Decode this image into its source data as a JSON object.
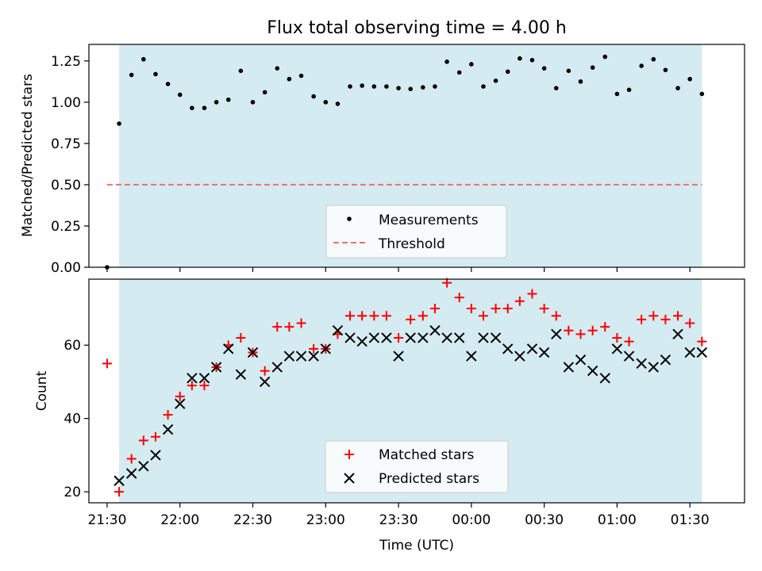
{
  "figure": {
    "title": "Flux total observing time = 4.00 h"
  },
  "chart_data": [
    {
      "type": "scatter",
      "ylabel": "Matched/Predicted stars",
      "ylim": [
        0,
        1.35
      ],
      "xlim": [
        -5,
        175
      ],
      "grid": false,
      "legend_position": "lower-center",
      "shaded_region": [
        3.3,
        163.3
      ],
      "yticks": [
        {
          "v": 0,
          "label": "0.00"
        },
        {
          "v": 0.25,
          "label": "0.25"
        },
        {
          "v": 0.5,
          "label": "0.50"
        },
        {
          "v": 0.75,
          "label": "0.75"
        },
        {
          "v": 1.0,
          "label": "1.00"
        },
        {
          "v": 1.25,
          "label": "1.25"
        }
      ],
      "threshold": {
        "name": "Threshold",
        "value": 0.5,
        "x_range": [
          0,
          163.3
        ],
        "color": "#f07070"
      },
      "series": [
        {
          "name": "Measurements",
          "color": "#000000",
          "x": [
            0,
            3.3,
            6.7,
            10,
            13.3,
            16.7,
            20,
            23.3,
            26.7,
            30,
            33.3,
            36.7,
            40,
            43.3,
            46.7,
            50,
            53.3,
            56.7,
            60,
            63.3,
            66.7,
            70,
            73.3,
            76.7,
            80,
            83.3,
            86.7,
            90,
            93.3,
            96.7,
            100,
            103.3,
            106.7,
            110,
            113.3,
            116.7,
            120,
            123.3,
            126.7,
            130,
            133.3,
            136.7,
            140,
            143.3,
            146.7,
            150,
            153.3,
            156.7,
            160,
            163.3
          ],
          "y": [
            0.0,
            0.87,
            1.165,
            1.26,
            1.17,
            1.11,
            1.045,
            0.965,
            0.965,
            1.0,
            1.015,
            1.19,
            1.0,
            1.06,
            1.205,
            1.14,
            1.16,
            1.035,
            1.0,
            0.99,
            1.095,
            1.1,
            1.095,
            1.095,
            1.085,
            1.08,
            1.09,
            1.095,
            1.245,
            1.18,
            1.23,
            1.095,
            1.13,
            1.185,
            1.265,
            1.255,
            1.205,
            1.085,
            1.19,
            1.125,
            1.21,
            1.275,
            1.05,
            1.075,
            1.22,
            1.26,
            1.195,
            1.085,
            1.14,
            1.05
          ]
        }
      ]
    },
    {
      "type": "scatter",
      "xlabel": "Time (UTC)",
      "ylabel": "Count",
      "ylim": [
        17,
        78
      ],
      "xlim": [
        -5,
        175
      ],
      "grid": false,
      "legend_position": "lower-center",
      "shaded_region": [
        3.3,
        163.3
      ],
      "yticks": [
        {
          "v": 20,
          "label": "20"
        },
        {
          "v": 40,
          "label": "40"
        },
        {
          "v": 60,
          "label": "60"
        }
      ],
      "xticks": [
        {
          "v": 0,
          "label": "21:30"
        },
        {
          "v": 20,
          "label": "22:00"
        },
        {
          "v": 40,
          "label": "22:30"
        },
        {
          "v": 60,
          "label": "23:00"
        },
        {
          "v": 80,
          "label": "23:30"
        },
        {
          "v": 100,
          "label": "00:00"
        },
        {
          "v": 120,
          "label": "00:30"
        },
        {
          "v": 140,
          "label": "01:00"
        },
        {
          "v": 160,
          "label": "01:30"
        }
      ],
      "series": [
        {
          "name": "Matched stars",
          "marker": "plus",
          "color": "#ff0000",
          "x": [
            0,
            3.3,
            6.7,
            10,
            13.3,
            16.7,
            20,
            23.3,
            26.7,
            30,
            33.3,
            36.7,
            40,
            43.3,
            46.7,
            50,
            53.3,
            56.7,
            60,
            63.3,
            66.7,
            70,
            73.3,
            76.7,
            80,
            83.3,
            86.7,
            90,
            93.3,
            96.7,
            100,
            103.3,
            106.7,
            110,
            113.3,
            116.7,
            120,
            123.3,
            126.7,
            130,
            133.3,
            136.7,
            140,
            143.3,
            146.7,
            150,
            153.3,
            156.7,
            160,
            163.3
          ],
          "y": [
            55,
            20,
            29,
            34,
            35,
            41,
            46,
            49,
            49,
            54,
            60,
            62,
            58,
            53,
            65,
            65,
            66,
            59,
            59,
            63,
            68,
            68,
            68,
            68,
            62,
            67,
            68,
            70,
            77,
            73,
            70,
            68,
            70,
            70,
            72,
            74,
            70,
            68,
            64,
            63,
            64,
            65,
            62,
            61,
            67,
            68,
            67,
            68,
            66,
            61
          ]
        },
        {
          "name": "Predicted stars",
          "marker": "x",
          "color": "#000000",
          "x": [
            3.3,
            6.7,
            10,
            13.3,
            16.7,
            20,
            23.3,
            26.7,
            30,
            33.3,
            36.7,
            40,
            43.3,
            46.7,
            50,
            53.3,
            56.7,
            60,
            63.3,
            66.7,
            70,
            73.3,
            76.7,
            80,
            83.3,
            86.7,
            90,
            93.3,
            96.7,
            100,
            103.3,
            106.7,
            110,
            113.3,
            116.7,
            120,
            123.3,
            126.7,
            130,
            133.3,
            136.7,
            140,
            143.3,
            146.7,
            150,
            153.3,
            156.7,
            160,
            163.3
          ],
          "y": [
            23,
            25,
            27,
            30,
            37,
            44,
            51,
            51,
            54,
            59,
            52,
            58,
            50,
            54,
            57,
            57,
            57,
            59,
            64,
            62,
            61,
            62,
            62,
            57,
            62,
            62,
            64,
            62,
            62,
            57,
            62,
            62,
            59,
            57,
            59,
            58,
            63,
            54,
            56,
            53,
            51,
            59,
            57,
            55,
            54,
            56,
            63,
            58,
            58
          ]
        }
      ]
    }
  ]
}
